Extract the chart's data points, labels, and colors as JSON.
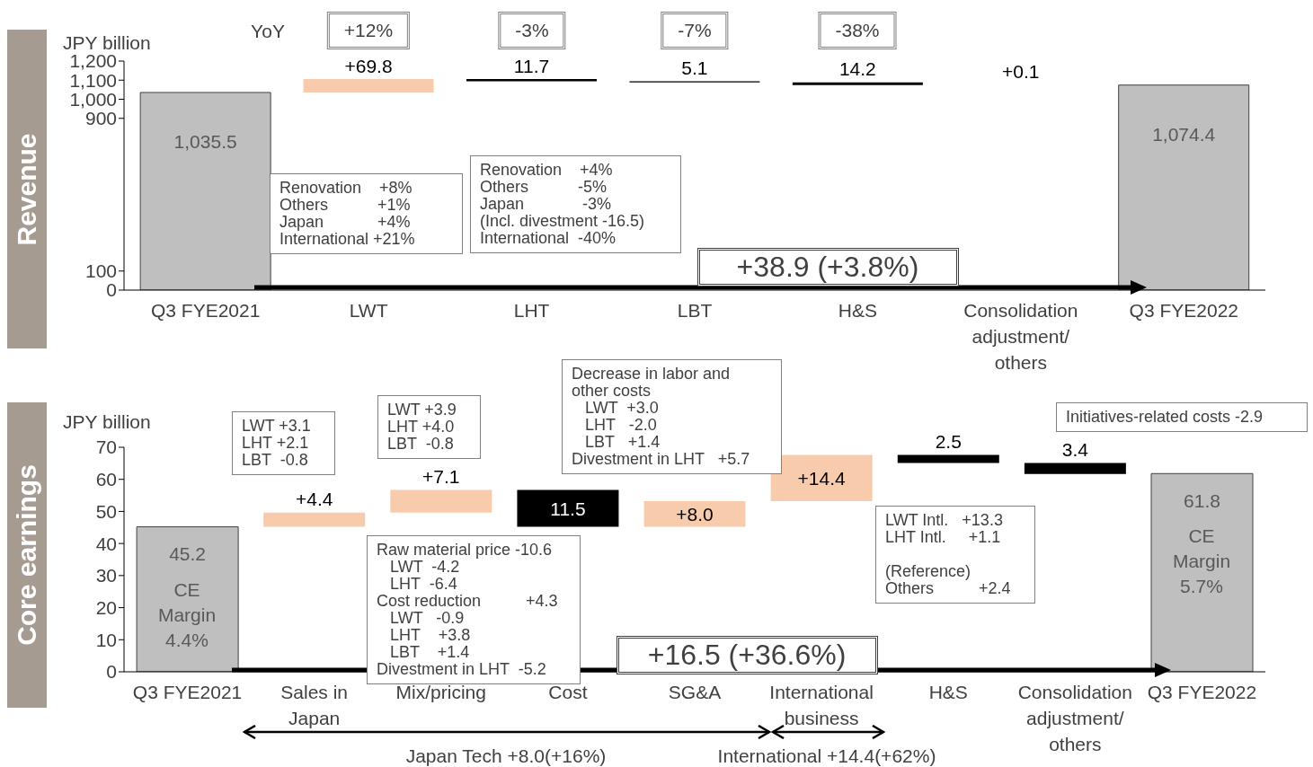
{
  "chart_data": [
    {
      "type": "bar",
      "title": "Revenue",
      "ylabel": "JPY billion",
      "categories": [
        "Q3 FYE2021",
        "LWT",
        "LHT",
        "LBT",
        "H&S",
        "Consolidation adjustment/ others",
        "Q3 FYE2022"
      ],
      "values": [
        1035.5,
        69.8,
        -11.7,
        -5.1,
        -14.2,
        0.1,
        1074.4
      ],
      "base": [
        0,
        1035.5,
        1105.3,
        1093.6,
        1088.5,
        1074.3,
        0
      ],
      "colors": [
        "#bfbfbf",
        "#f8cbad",
        "#000000",
        "#000000",
        "#000000",
        "#f8cbad",
        "#bfbfbf"
      ],
      "value_labels": [
        "1,035.5",
        "+69.8",
        "11.7",
        "5.1",
        "14.2",
        "+0.1",
        "1,074.4"
      ],
      "ylim": [
        0,
        1200
      ],
      "yticks": [
        0,
        100,
        {
          "value": 900,
          "label": "900"
        },
        {
          "value": 1000,
          "label": "1,000"
        },
        {
          "value": 1100,
          "label": "1,100"
        },
        {
          "value": 1200,
          "label": "1,200"
        }
      ],
      "annotations": [
        "YoY",
        "+12%",
        "-3%",
        "-7%",
        "-38%",
        "Renovation    +8%\nOthers           +1%\nJapan            +4%\nInternational +21%",
        "Renovation    +4%\nOthers           -5%\nJapan             -3%\n(Incl. divestment -16.5)\nInternational  -40%",
        "+38.9 (+3.8%)"
      ]
    },
    {
      "type": "bar",
      "title": "Core earnings",
      "ylabel": "JPY billion",
      "categories": [
        "Q3 FYE2021",
        "Sales in Japan",
        "Mix/pricing",
        "Cost",
        "SG&A",
        "International business",
        "H&S",
        "Consolidation adjustment/ others",
        "Q3 FYE2022"
      ],
      "values": [
        45.2,
        4.4,
        7.1,
        -11.5,
        8.0,
        14.4,
        -2.5,
        -3.4,
        61.8
      ],
      "base": [
        0,
        45.2,
        49.6,
        56.7,
        45.2,
        53.2,
        67.6,
        65.1,
        0
      ],
      "colors": [
        "#bfbfbf",
        "#f8cbad",
        "#f8cbad",
        "#000000",
        "#f8cbad",
        "#f8cbad",
        "#000000",
        "#000000",
        "#bfbfbf"
      ],
      "value_labels": [
        "45.2",
        "+4.4",
        "+7.1",
        "11.5",
        "+8.0",
        "+14.4",
        "2.5",
        "3.4",
        "61.8"
      ],
      "ylim": [
        0,
        70
      ],
      "yticks": [
        0,
        10,
        20,
        30,
        40,
        50,
        60,
        70
      ],
      "annotations": [
        "CE Margin 4.4%",
        "CE Margin 5.7%",
        "LWT +3.1\nLHT +2.1\nLBT  -0.8",
        "LWT +3.9\nLHT +4.0\nLBT  -0.8",
        "Raw material price -10.6\n   LWT  -4.2\n   LHT  -6.4\nCost reduction          +4.3\n   LWT   -0.9\n   LHT    +3.8\n   LBT    +1.4\nDivestment in LHT  -5.2",
        "Decrease in labor and\nother costs\n   LWT  +3.0\n   LHT   -2.0\n   LBT   +1.4\nDivestment in LHT   +5.7",
        "LWT Intl.   +13.3\nLHT Intl.     +1.1\n\n(Reference)\nOthers          +2.4",
        "Initiatives-related costs -2.9",
        "+16.5 (+36.6%)",
        "Japan Tech +8.0(+16%)",
        "International +14.4(+62%)"
      ]
    }
  ]
}
